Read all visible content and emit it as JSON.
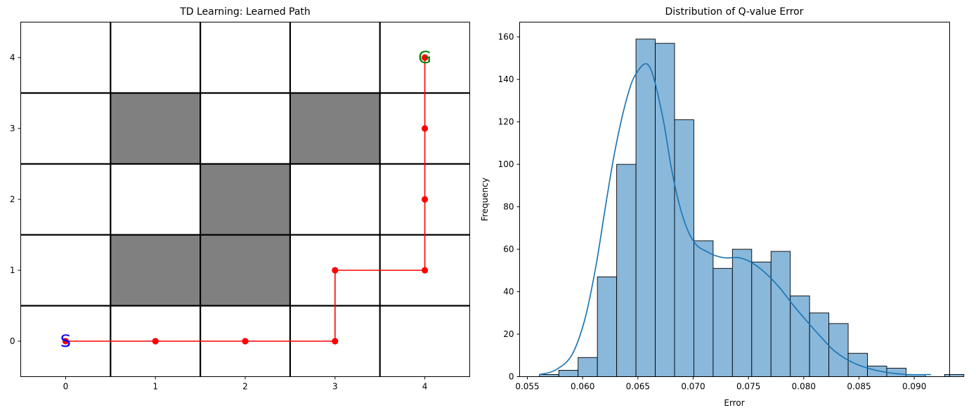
{
  "chart_data": [
    {
      "type": "gridworld",
      "title": "TD Learning: Learned Path",
      "grid_size": [
        5,
        5
      ],
      "xlim": [
        -0.5,
        4.5
      ],
      "ylim": [
        -0.5,
        4.5
      ],
      "x_ticks": [
        "0",
        "1",
        "2",
        "3",
        "4"
      ],
      "y_ticks": [
        "0",
        "1",
        "2",
        "3",
        "4"
      ],
      "obstacles": [
        [
          1,
          1
        ],
        [
          2,
          1
        ],
        [
          2,
          2
        ],
        [
          1,
          3
        ],
        [
          3,
          3
        ]
      ],
      "obstacle_color": "#808080",
      "start": {
        "x": 0,
        "y": 0,
        "label": "S",
        "color": "#0000ff"
      },
      "goal": {
        "x": 4,
        "y": 4,
        "label": "G",
        "color": "#008000"
      },
      "path": [
        [
          0,
          0
        ],
        [
          1,
          0
        ],
        [
          2,
          0
        ],
        [
          3,
          0
        ],
        [
          3,
          1
        ],
        [
          4,
          1
        ],
        [
          4,
          2
        ],
        [
          4,
          3
        ],
        [
          4,
          4
        ]
      ],
      "path_color": "#ff0000",
      "grid": true
    },
    {
      "type": "bar",
      "subtype": "histogram_with_kde",
      "title": "Distribution of Q-value Error",
      "xlabel": "Error",
      "ylabel": "Frequency",
      "xlim": [
        0.0543,
        0.0932
      ],
      "ylim": [
        0,
        167
      ],
      "x_ticks": [
        "0.055",
        "0.060",
        "0.065",
        "0.070",
        "0.075",
        "0.080",
        "0.085",
        "0.090"
      ],
      "x_tick_values": [
        0.055,
        0.06,
        0.065,
        0.07,
        0.075,
        0.08,
        0.085,
        0.09
      ],
      "y_ticks": [
        "0",
        "20",
        "40",
        "60",
        "80",
        "100",
        "120",
        "140",
        "160"
      ],
      "y_tick_values": [
        0,
        20,
        40,
        60,
        80,
        100,
        120,
        140,
        160
      ],
      "bin_start": 0.0561,
      "bin_width": 0.001745,
      "values": [
        1,
        3,
        9,
        47,
        100,
        159,
        157,
        121,
        64,
        51,
        60,
        54,
        59,
        38,
        30,
        25,
        11,
        5,
        4,
        1,
        0,
        1
      ],
      "kde": {
        "x": [
          0.0561,
          0.0575,
          0.059,
          0.0602,
          0.0612,
          0.062,
          0.0628,
          0.0636,
          0.0644,
          0.065,
          0.0655,
          0.0659,
          0.0663,
          0.0668,
          0.0674,
          0.068,
          0.0687,
          0.0695,
          0.0703,
          0.0712,
          0.072,
          0.0728,
          0.0735,
          0.0742,
          0.0752,
          0.0765,
          0.0778,
          0.079,
          0.0803,
          0.0815,
          0.0828,
          0.0843,
          0.0858,
          0.0875,
          0.0893,
          0.0915
        ],
        "y": [
          1,
          3,
          10,
          27,
          52,
          78,
          103,
          123,
          138,
          144,
          147,
          147,
          143,
          133,
          118,
          99,
          82,
          69,
          62,
          59,
          57,
          56,
          56,
          56,
          54,
          49,
          42,
          34,
          26,
          19,
          12,
          7,
          4,
          2,
          1,
          1
        ]
      },
      "bar_color": "#89b8db",
      "line_color": "#1f77b4",
      "grid": false
    }
  ]
}
